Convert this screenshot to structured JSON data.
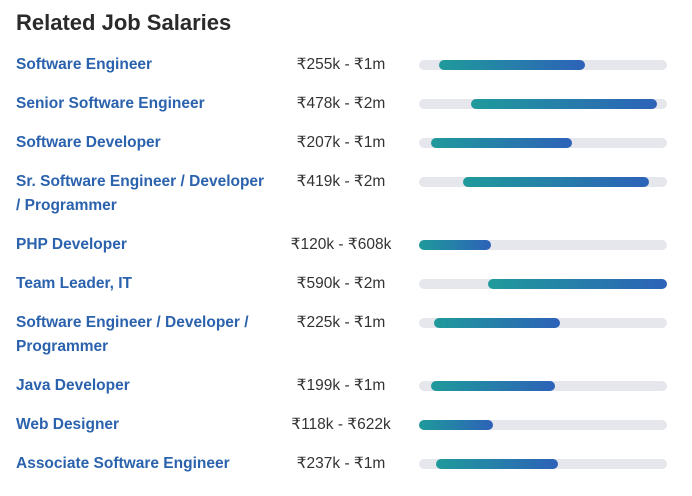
{
  "heading": "Related Job Salaries",
  "colors": {
    "link": "#2b62ad",
    "bar_start": "#1f9a9b",
    "bar_end": "#2d62b8",
    "track": "#e6e7ec"
  },
  "jobs": [
    {
      "title": "Software Engineer",
      "range": "₹255k - ₹1m",
      "bar_start": 0.081,
      "bar_end": 0.669
    },
    {
      "title": "Senior Software Engineer",
      "range": "₹478k - ₹2m",
      "bar_start": 0.21,
      "bar_end": 0.96
    },
    {
      "title": "Software Developer",
      "range": "₹207k - ₹1m",
      "bar_start": 0.048,
      "bar_end": 0.617
    },
    {
      "title": "Sr. Software Engineer / Developer / Programmer",
      "range": "₹419k - ₹2m",
      "bar_start": 0.177,
      "bar_end": 0.927
    },
    {
      "title": "PHP Developer",
      "range": "₹120k - ₹608k",
      "bar_start": 0.0,
      "bar_end": 0.29
    },
    {
      "title": "Team Leader, IT",
      "range": "₹590k - ₹2m",
      "bar_start": 0.278,
      "bar_end": 1.0
    },
    {
      "title": "Software Engineer / Developer / Programmer",
      "range": "₹225k - ₹1m",
      "bar_start": 0.06,
      "bar_end": 0.569
    },
    {
      "title": "Java Developer",
      "range": "₹199k - ₹1m",
      "bar_start": 0.048,
      "bar_end": 0.548
    },
    {
      "title": "Web Designer",
      "range": "₹118k - ₹622k",
      "bar_start": 0.0,
      "bar_end": 0.298
    },
    {
      "title": "Associate Software Engineer",
      "range": "₹237k - ₹1m",
      "bar_start": 0.069,
      "bar_end": 0.56
    }
  ]
}
